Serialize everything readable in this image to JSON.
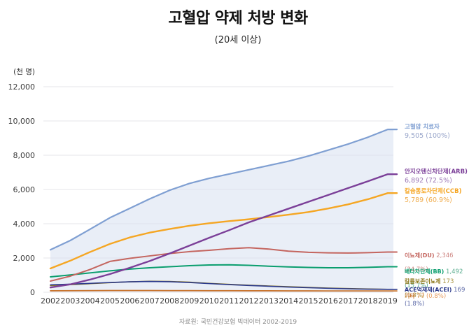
{
  "title": "고혈압 약제 처방 변화",
  "subtitle": "(20세 이상)",
  "source": "자료원: 국민건강보험 빅데이터 2002-2019",
  "y_axis_unit": "(천 명)",
  "chart_data": {
    "type": "line",
    "title": "고혈압 약제 처방 변화",
    "subtitle": "(20세 이상)",
    "ylabel": "(천 명)",
    "xlabel": "",
    "x": [
      2002,
      2003,
      2004,
      2005,
      2006,
      2007,
      2008,
      2009,
      2010,
      2011,
      2012,
      2013,
      2014,
      2015,
      2016,
      2017,
      2018,
      2019
    ],
    "ylim": [
      0,
      12000
    ],
    "yticks": [
      0,
      2000,
      4000,
      6000,
      8000,
      10000,
      12000
    ],
    "grid": "horizontal",
    "legend_position": "right",
    "series": [
      {
        "name": "고혈압 치료자",
        "final_value_label": "9,505 (100%)",
        "color": "#7f9fd2",
        "area_fill": "#dbe3f2",
        "values": [
          2480,
          3020,
          3680,
          4350,
          4900,
          5450,
          5950,
          6350,
          6650,
          6900,
          7150,
          7400,
          7650,
          7950,
          8300,
          8650,
          9050,
          9505
        ]
      },
      {
        "name": "안지오텐신차단제(ARB)",
        "final_value_label": "6,892 (72.5%)",
        "color": "#7b3f98",
        "values": [
          280,
          460,
          740,
          1060,
          1430,
          1820,
          2260,
          2720,
          3180,
          3620,
          4080,
          4480,
          4880,
          5280,
          5680,
          6080,
          6480,
          6892
        ]
      },
      {
        "name": "칼슘통로차단제(CCB)",
        "final_value_label": "5,789 (60.9%)",
        "color": "#f5a623",
        "values": [
          1390,
          1840,
          2350,
          2820,
          3200,
          3480,
          3690,
          3880,
          4030,
          4150,
          4260,
          4390,
          4530,
          4680,
          4890,
          5130,
          5430,
          5789
        ]
      },
      {
        "name": "이뇨제(DU)",
        "final_value_label": "2,346 (24.7%)",
        "color": "#c4655f",
        "values": [
          650,
          940,
          1330,
          1800,
          1980,
          2120,
          2260,
          2370,
          2450,
          2540,
          2600,
          2520,
          2400,
          2330,
          2300,
          2290,
          2310,
          2346
        ]
      },
      {
        "name": "베타차단제(BB)",
        "final_value_label": "1,492 (15.7%)",
        "color": "#0a9e6e",
        "values": [
          900,
          1010,
          1130,
          1250,
          1350,
          1430,
          1490,
          1550,
          1590,
          1600,
          1570,
          1520,
          1480,
          1450,
          1430,
          1430,
          1455,
          1492
        ]
      },
      {
        "name": "칼륨보존이뇨제",
        "final_value_label": "173 (1.8%)",
        "color": "#8f7a1e",
        "values": [
          390,
          440,
          500,
          560,
          610,
          640,
          630,
          590,
          520,
          460,
          410,
          365,
          325,
          285,
          245,
          215,
          190,
          173
        ]
      },
      {
        "name": "ACE억제제(ACEI)",
        "final_value_label": "169 (1.8%)",
        "color": "#2c3a8c",
        "values": [
          430,
          470,
          520,
          570,
          610,
          630,
          615,
          570,
          505,
          445,
          395,
          350,
          305,
          265,
          230,
          200,
          180,
          169
        ]
      },
      {
        "name": "기타",
        "final_value_label": "77 (0.8%)",
        "color": "#c9752f",
        "values": [
          85,
          90,
          95,
          100,
          100,
          100,
          95,
          95,
          90,
          90,
          85,
          85,
          80,
          80,
          78,
          77,
          77,
          77
        ]
      }
    ]
  }
}
